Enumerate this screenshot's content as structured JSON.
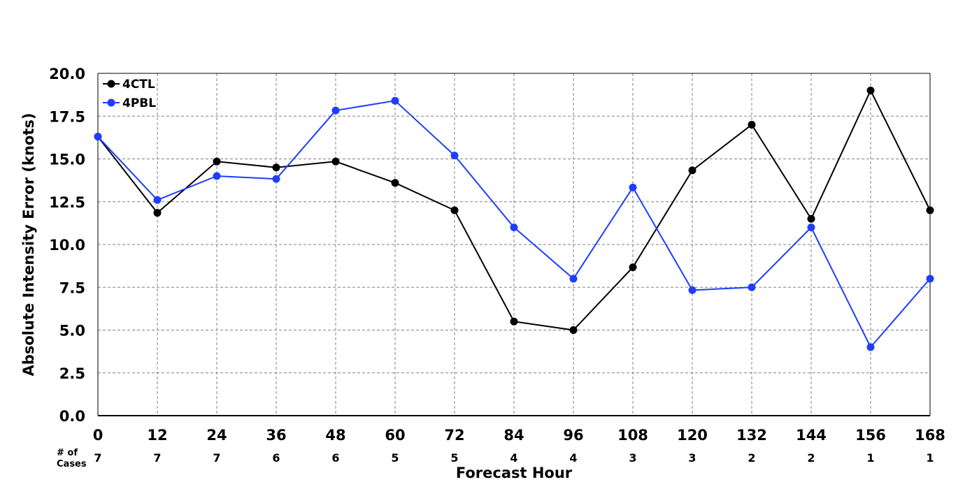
{
  "chart_data": {
    "type": "line",
    "title": "",
    "xlabel": "Forecast Hour",
    "ylabel": "Absolute Intensity Error (knots)",
    "x": [
      0,
      12,
      24,
      36,
      48,
      60,
      72,
      84,
      96,
      108,
      120,
      132,
      144,
      156,
      168
    ],
    "xlim": [
      0,
      168
    ],
    "ylim": [
      0,
      20
    ],
    "y_ticks": [
      "0.0",
      "2.5",
      "5.0",
      "7.5",
      "10.0",
      "12.5",
      "15.0",
      "17.5",
      "20.0"
    ],
    "grid": true,
    "legend_position": "top-left",
    "cases_label": [
      "# of",
      "Cases"
    ],
    "cases": [
      7,
      7,
      7,
      6,
      6,
      5,
      5,
      4,
      4,
      3,
      3,
      2,
      2,
      1,
      1
    ],
    "series": [
      {
        "name": "4CTL",
        "color": "#000000",
        "values": [
          16.3,
          11.85,
          14.85,
          14.5,
          14.85,
          13.6,
          12.0,
          5.5,
          5.0,
          8.67,
          14.33,
          17.0,
          11.5,
          19.0,
          12.0
        ]
      },
      {
        "name": "4PBL",
        "color": "#1f3dff",
        "values": [
          16.3,
          12.6,
          14.0,
          13.83,
          17.83,
          18.4,
          15.2,
          11.0,
          8.0,
          13.33,
          7.33,
          7.5,
          11.0,
          4.0,
          8.0
        ]
      }
    ]
  }
}
